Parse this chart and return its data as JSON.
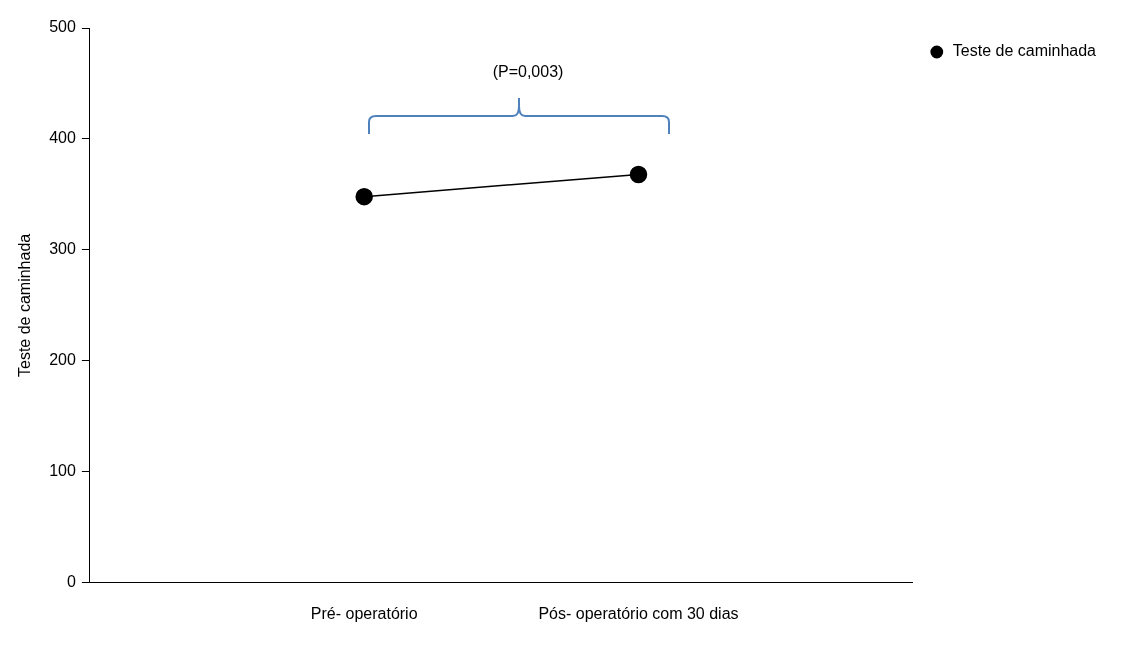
{
  "chart_data": {
    "type": "line",
    "ylabel": "Teste de caminhada",
    "categories": [
      "Pré- operatório",
      "Pós- operatório com 30 dias"
    ],
    "series": [
      {
        "name": "Teste de caminhada",
        "color": "#000000",
        "values": [
          348,
          368
        ]
      }
    ],
    "ylim": [
      0,
      500
    ],
    "yticks": [
      0,
      100,
      200,
      300,
      400,
      500
    ],
    "grid": false,
    "legend": "top right",
    "marker": "circle",
    "line_style": "solid",
    "annotations": [
      "(P=0,003)"
    ]
  }
}
